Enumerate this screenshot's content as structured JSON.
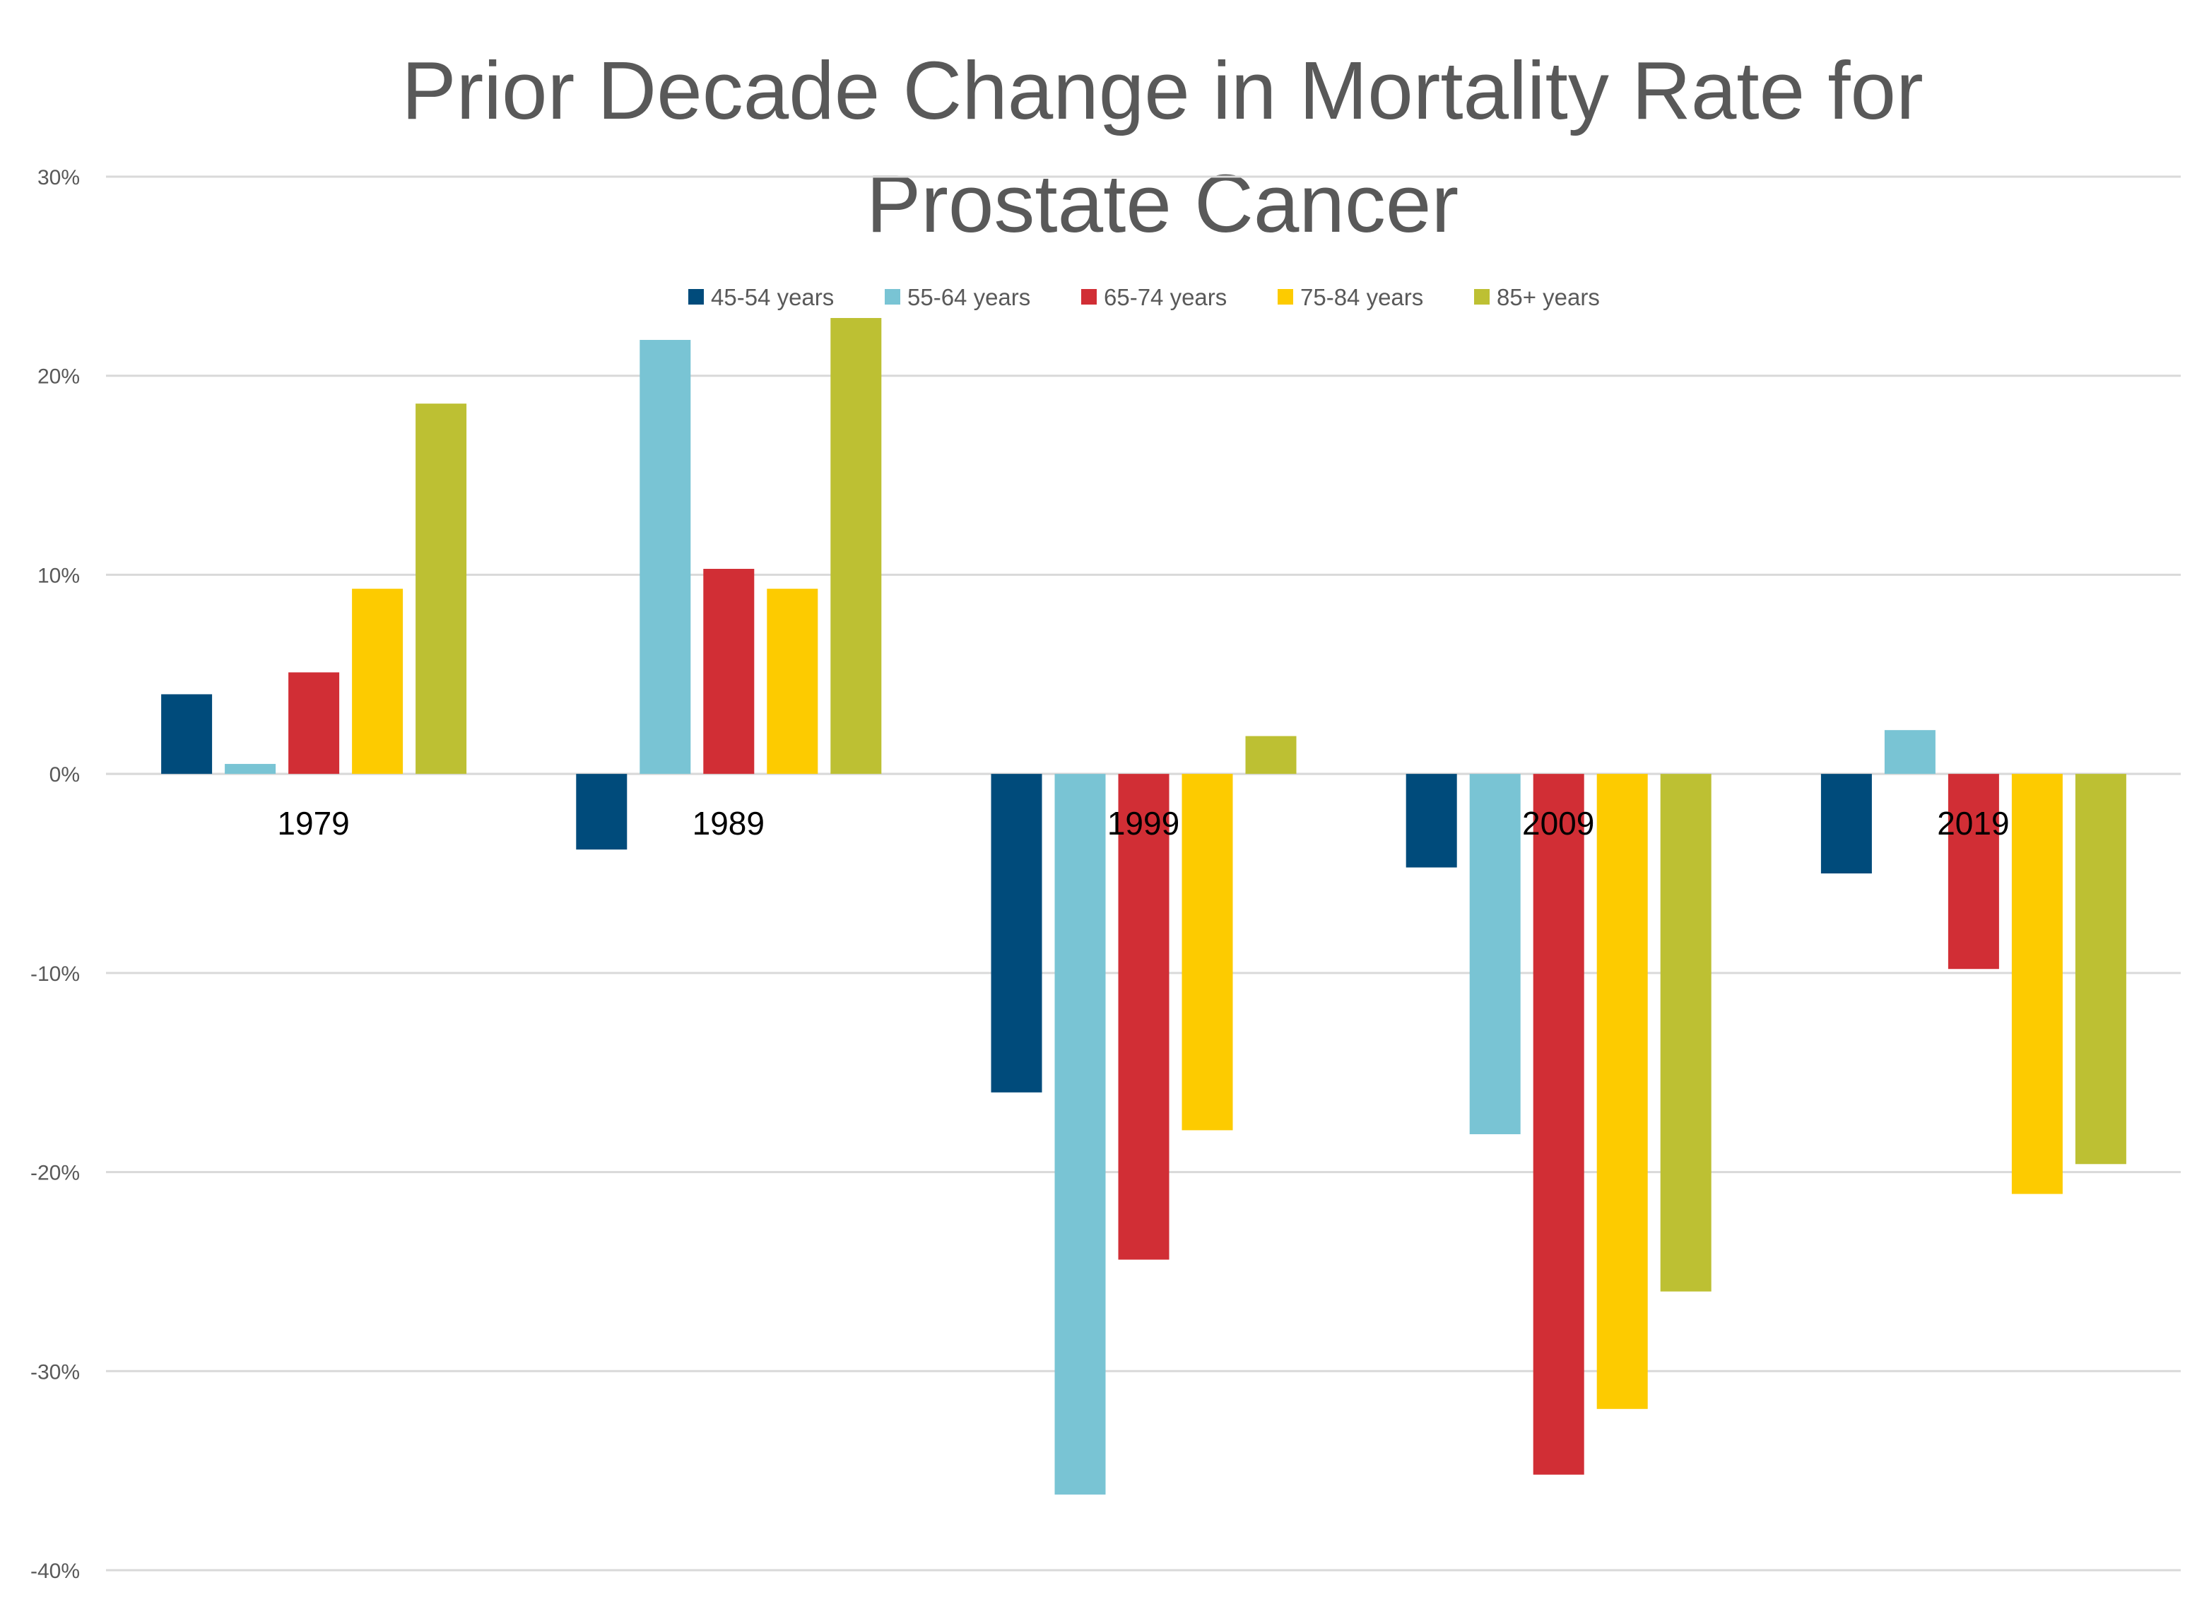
{
  "chart_data": {
    "type": "bar",
    "title_lines": [
      "Prior Decade Change in Mortality Rate for",
      "Prostate Cancer"
    ],
    "xlabel": "",
    "ylabel": "",
    "categories": [
      "1979",
      "1989",
      "1999",
      "2009",
      "2019"
    ],
    "series": [
      {
        "name": "45-54 years",
        "color": "#004B7B",
        "values": [
          4.0,
          -3.8,
          -16.0,
          -4.7,
          -5.0
        ]
      },
      {
        "name": "55-64 years",
        "color": "#79C4D4",
        "values": [
          0.5,
          21.8,
          -36.2,
          -18.1,
          2.2
        ]
      },
      {
        "name": "65-74 years",
        "color": "#D12E35",
        "values": [
          5.1,
          10.3,
          -24.4,
          -35.2,
          -9.8
        ]
      },
      {
        "name": "75-84 years",
        "color": "#FDCB00",
        "values": [
          9.3,
          9.3,
          -17.9,
          -31.9,
          -21.1
        ]
      },
      {
        "name": "85+ years",
        "color": "#BDC033",
        "values": [
          18.6,
          22.9,
          1.9,
          -26.0,
          -19.6
        ]
      }
    ],
    "ylim": [
      -40,
      30
    ],
    "yticks": [
      30,
      20,
      10,
      0,
      -10,
      -20,
      -30,
      -40
    ],
    "ytick_labels": [
      "30%",
      "20%",
      "10%",
      "0%",
      "-10%",
      "-20%",
      "-30%",
      "-40%"
    ],
    "grid": true,
    "legend_position": "top-center",
    "gridline_color": "#D9D9D9"
  }
}
